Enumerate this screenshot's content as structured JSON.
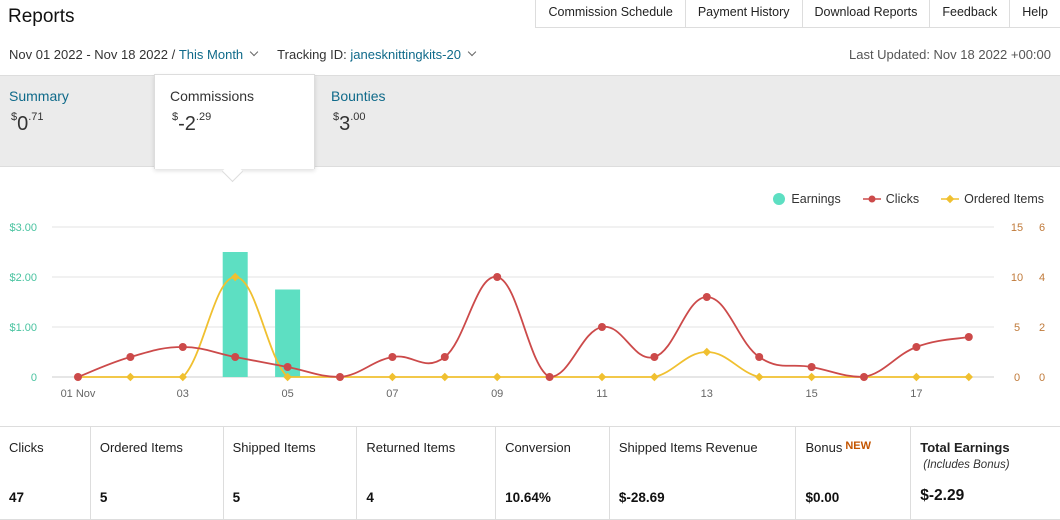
{
  "header": {
    "title": "Reports",
    "nav": [
      "Commission Schedule",
      "Payment History",
      "Download Reports",
      "Feedback",
      "Help"
    ]
  },
  "filters": {
    "date_range": "Nov 01 2022 - Nov 18 2022 /",
    "period_link": "This Month",
    "tracking_label": "Tracking ID:",
    "tracking_id": "janesknittingkits-20",
    "last_updated": "Last Updated: Nov 18 2022 +00:00"
  },
  "tabs": {
    "summary": {
      "label": "Summary",
      "currency": "$",
      "whole": "0",
      "cents": ".71"
    },
    "commissions": {
      "label": "Commissions",
      "currency": "$",
      "whole": "-2",
      "cents": ".29"
    },
    "bounties": {
      "label": "Bounties",
      "currency": "$",
      "whole": "3",
      "cents": ".00"
    }
  },
  "legend": {
    "earnings": "Earnings",
    "clicks": "Clicks",
    "ordered": "Ordered Items"
  },
  "colors": {
    "earnings": "#5ddfc2",
    "clicks": "#cc4a4a",
    "ordered": "#f0c030",
    "link": "#0f6a8a"
  },
  "chart_data": {
    "type": "bar",
    "categories": [
      "01",
      "02",
      "03",
      "04",
      "05",
      "06",
      "07",
      "08",
      "09",
      "10",
      "11",
      "12",
      "13",
      "14",
      "15",
      "16",
      "17",
      "18"
    ],
    "x_tick_labels": [
      "01 Nov",
      "03",
      "05",
      "07",
      "09",
      "11",
      "13",
      "15",
      "17"
    ],
    "y_left_labels": [
      "0",
      "$1.00",
      "$2.00",
      "$3.00"
    ],
    "y_right1_labels": [
      "0",
      "5",
      "10",
      "15"
    ],
    "y_right2_labels": [
      "0",
      "2",
      "4",
      "6"
    ],
    "ylim_left": [
      0,
      3
    ],
    "ylim_right1": [
      0,
      15
    ],
    "ylim_right2": [
      0,
      6
    ],
    "series": [
      {
        "name": "Earnings",
        "type": "bar",
        "axis": "left",
        "values": [
          0,
          0,
          0,
          2.5,
          1.75,
          0,
          0,
          0,
          0,
          0,
          0,
          0,
          0,
          0,
          0,
          0,
          0,
          0
        ]
      },
      {
        "name": "Clicks",
        "type": "line",
        "axis": "right1",
        "values": [
          0,
          2,
          3,
          2,
          1,
          0,
          2,
          2,
          10,
          0,
          5,
          2,
          8,
          2,
          1,
          0,
          3,
          4
        ]
      },
      {
        "name": "Ordered Items",
        "type": "line",
        "axis": "right2",
        "values": [
          0,
          0,
          0,
          4,
          0,
          0,
          0,
          0,
          0,
          0,
          0,
          0,
          1,
          0,
          0,
          0,
          0,
          0
        ]
      }
    ],
    "grid": true,
    "legend_position": "top-right"
  },
  "stats": [
    {
      "label": "Clicks",
      "value": "47"
    },
    {
      "label": "Ordered Items",
      "value": "5"
    },
    {
      "label": "Shipped Items",
      "value": "5"
    },
    {
      "label": "Returned Items",
      "value": "4"
    },
    {
      "label": "Conversion",
      "value": "10.64%"
    },
    {
      "label": "Shipped Items Revenue",
      "value": "$-28.69"
    },
    {
      "label": "Bonus",
      "badge": "NEW",
      "value": "$0.00"
    },
    {
      "label": "Total Earnings",
      "sub": "(Includes Bonus)",
      "value": "$-2.29"
    }
  ]
}
